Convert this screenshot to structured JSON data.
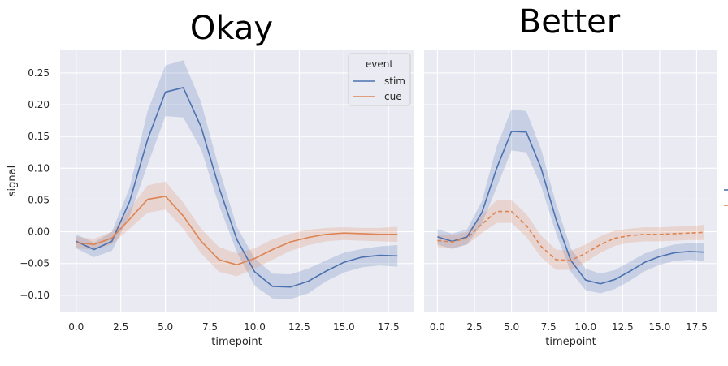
{
  "chart_data": [
    {
      "type": "line",
      "title": "Okay",
      "xlabel": "timepoint",
      "ylabel": "signal",
      "xlim": [
        -0.9,
        18.9
      ],
      "ylim": [
        -0.127,
        0.287
      ],
      "x_ticks": [
        0,
        2.5,
        5,
        7.5,
        10,
        12.5,
        15,
        17.5
      ],
      "x_tick_labels": [
        "0.0",
        "2.5",
        "5.0",
        "7.5",
        "10.0",
        "12.5",
        "15.0",
        "17.5"
      ],
      "y_ticks": [
        -0.1,
        -0.05,
        0,
        0.05,
        0.1,
        0.15,
        0.2,
        0.25
      ],
      "y_tick_labels": [
        "−0.10",
        "−0.05",
        "0.00",
        "0.05",
        "0.10",
        "0.15",
        "0.20",
        "0.25"
      ],
      "grid": true,
      "background": "#eaeaf2",
      "legend": {
        "title": "event",
        "placement": "top-right",
        "entries": [
          "stim",
          "cue"
        ]
      },
      "x": [
        0,
        1,
        2,
        3,
        4,
        5,
        6,
        7,
        8,
        9,
        10,
        11,
        12,
        13,
        14,
        15,
        16,
        17,
        18
      ],
      "series": [
        {
          "name": "stim",
          "color": "#4c72b0",
          "dash": "solid",
          "values": [
            -0.015,
            -0.028,
            -0.015,
            0.048,
            0.145,
            0.22,
            0.227,
            0.165,
            0.07,
            -0.012,
            -0.063,
            -0.086,
            -0.087,
            -0.078,
            -0.062,
            -0.048,
            -0.04,
            -0.037,
            -0.038
          ],
          "lower": [
            -0.026,
            -0.04,
            -0.03,
            0.025,
            0.105,
            0.182,
            0.18,
            0.13,
            0.042,
            -0.032,
            -0.085,
            -0.105,
            -0.106,
            -0.097,
            -0.078,
            -0.064,
            -0.056,
            -0.053,
            -0.055
          ],
          "upper": [
            -0.004,
            -0.017,
            0.0,
            0.07,
            0.19,
            0.262,
            0.27,
            0.204,
            0.1,
            0.008,
            -0.042,
            -0.066,
            -0.067,
            -0.058,
            -0.045,
            -0.033,
            -0.027,
            -0.023,
            -0.021
          ]
        },
        {
          "name": "cue",
          "color": "#dd8452",
          "dash": "solid",
          "values": [
            -0.017,
            -0.02,
            -0.01,
            0.02,
            0.051,
            0.056,
            0.025,
            -0.015,
            -0.044,
            -0.052,
            -0.042,
            -0.028,
            -0.016,
            -0.009,
            -0.004,
            -0.002,
            -0.003,
            -0.004,
            -0.004
          ],
          "lower": [
            -0.026,
            -0.028,
            -0.02,
            0.005,
            0.03,
            0.035,
            0.005,
            -0.034,
            -0.063,
            -0.07,
            -0.058,
            -0.044,
            -0.03,
            -0.021,
            -0.015,
            -0.013,
            -0.014,
            -0.015,
            -0.016
          ],
          "upper": [
            -0.008,
            -0.011,
            0.0,
            0.036,
            0.073,
            0.079,
            0.046,
            0.005,
            -0.024,
            -0.034,
            -0.026,
            -0.012,
            -0.003,
            0.003,
            0.006,
            0.007,
            0.006,
            0.006,
            0.008
          ]
        }
      ]
    },
    {
      "type": "line",
      "title": "Better",
      "xlabel": "timepoint",
      "ylabel": "",
      "xlim": [
        -0.9,
        18.9
      ],
      "ylim": [
        -0.127,
        0.287
      ],
      "x_ticks": [
        0,
        2.5,
        5,
        7.5,
        10,
        12.5,
        15,
        17.5
      ],
      "x_tick_labels": [
        "0.0",
        "2.5",
        "5.0",
        "7.5",
        "10.0",
        "12.5",
        "15.0",
        "17.5"
      ],
      "y_ticks": [
        -0.1,
        -0.05,
        0,
        0.05,
        0.1,
        0.15,
        0.2,
        0.25
      ],
      "y_tick_labels": [],
      "grid": true,
      "background": "#eaeaf2",
      "x": [
        0,
        1,
        2,
        3,
        4,
        5,
        6,
        7,
        8,
        9,
        10,
        11,
        12,
        13,
        14,
        15,
        16,
        17,
        18
      ],
      "series": [
        {
          "name": "",
          "color": "#4c72b0",
          "dash": "solid",
          "values": [
            -0.008,
            -0.015,
            -0.008,
            0.03,
            0.1,
            0.158,
            0.157,
            0.1,
            0.02,
            -0.045,
            -0.076,
            -0.082,
            -0.075,
            -0.062,
            -0.048,
            -0.039,
            -0.033,
            -0.031,
            -0.032
          ],
          "lower": [
            -0.02,
            -0.027,
            -0.02,
            0.012,
            0.07,
            0.128,
            0.125,
            0.072,
            -0.002,
            -0.063,
            -0.092,
            -0.097,
            -0.09,
            -0.077,
            -0.062,
            -0.052,
            -0.046,
            -0.044,
            -0.046
          ],
          "upper": [
            0.004,
            -0.003,
            0.004,
            0.048,
            0.134,
            0.193,
            0.19,
            0.13,
            0.045,
            -0.026,
            -0.058,
            -0.066,
            -0.06,
            -0.047,
            -0.034,
            -0.026,
            -0.02,
            -0.018,
            -0.018
          ]
        },
        {
          "name": "",
          "color": "#dd8452",
          "dash": "dashed",
          "values": [
            -0.014,
            -0.016,
            -0.01,
            0.012,
            0.032,
            0.032,
            0.01,
            -0.023,
            -0.044,
            -0.045,
            -0.034,
            -0.02,
            -0.01,
            -0.006,
            -0.004,
            -0.004,
            -0.003,
            -0.002,
            -0.001
          ],
          "lower": [
            -0.024,
            -0.026,
            -0.02,
            -0.002,
            0.014,
            0.014,
            -0.008,
            -0.04,
            -0.06,
            -0.06,
            -0.048,
            -0.033,
            -0.022,
            -0.017,
            -0.015,
            -0.015,
            -0.014,
            -0.013,
            -0.013
          ],
          "upper": [
            -0.004,
            -0.006,
            0.0,
            0.026,
            0.05,
            0.05,
            0.028,
            -0.006,
            -0.028,
            -0.03,
            -0.02,
            -0.007,
            0.002,
            0.005,
            0.007,
            0.007,
            0.008,
            0.009,
            0.011
          ]
        }
      ]
    }
  ]
}
